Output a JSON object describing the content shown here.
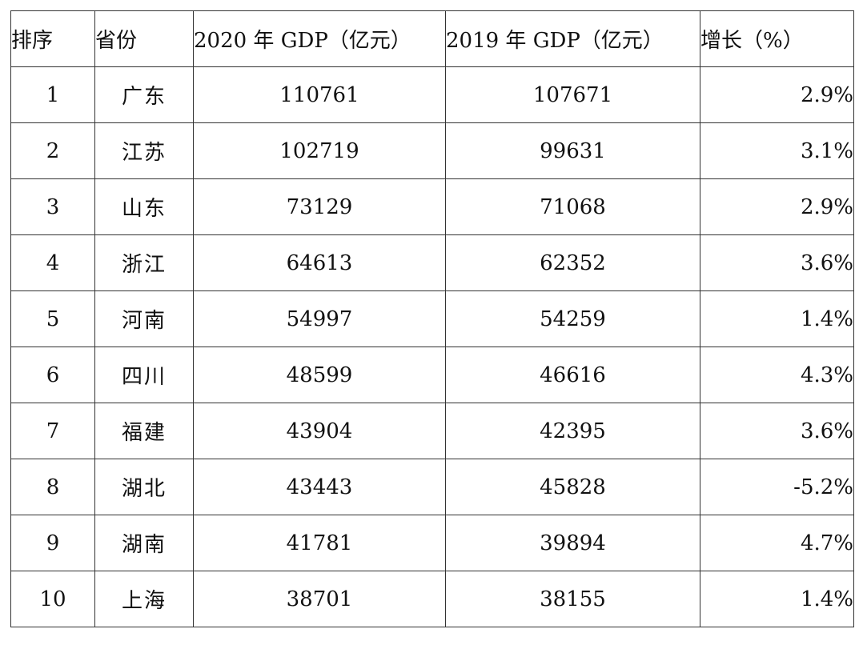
{
  "table": {
    "headers": {
      "rank": "排序",
      "province": "省份",
      "gdp_2020": "2020 年 GDP（亿元）",
      "gdp_2019": "2019 年 GDP（亿元）",
      "growth": "增长（%）"
    },
    "rows": [
      {
        "rank": "1",
        "province": "广东",
        "gdp_2020": "110761",
        "gdp_2019": "107671",
        "growth": "2.9%"
      },
      {
        "rank": "2",
        "province": "江苏",
        "gdp_2020": "102719",
        "gdp_2019": "99631",
        "growth": "3.1%"
      },
      {
        "rank": "3",
        "province": "山东",
        "gdp_2020": "73129",
        "gdp_2019": "71068",
        "growth": "2.9%"
      },
      {
        "rank": "4",
        "province": "浙江",
        "gdp_2020": "64613",
        "gdp_2019": "62352",
        "growth": "3.6%"
      },
      {
        "rank": "5",
        "province": "河南",
        "gdp_2020": "54997",
        "gdp_2019": "54259",
        "growth": "1.4%"
      },
      {
        "rank": "6",
        "province": "四川",
        "gdp_2020": "48599",
        "gdp_2019": "46616",
        "growth": "4.3%"
      },
      {
        "rank": "7",
        "province": "福建",
        "gdp_2020": "43904",
        "gdp_2019": "42395",
        "growth": "3.6%"
      },
      {
        "rank": "8",
        "province": "湖北",
        "gdp_2020": "43443",
        "gdp_2019": "45828",
        "growth": "-5.2%"
      },
      {
        "rank": "9",
        "province": "湖南",
        "gdp_2020": "41781",
        "gdp_2019": "39894",
        "growth": "4.7%"
      },
      {
        "rank": "10",
        "province": "上海",
        "gdp_2020": "38701",
        "gdp_2019": "38155",
        "growth": "1.4%"
      }
    ]
  }
}
